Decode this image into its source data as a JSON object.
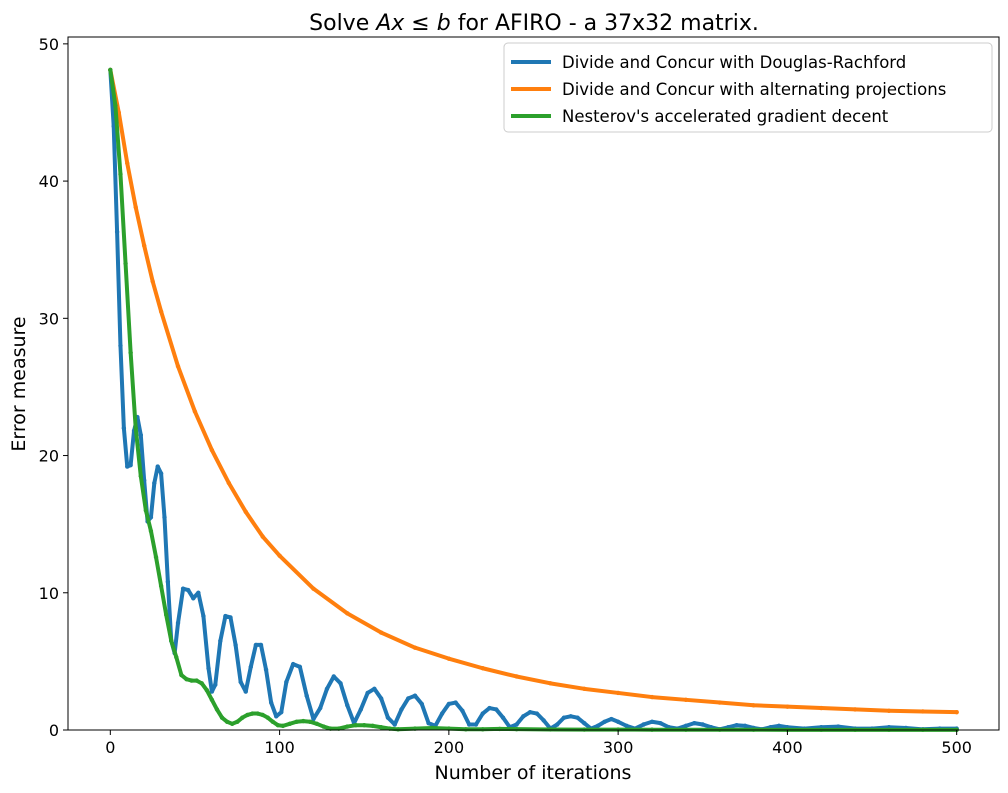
{
  "chart_data": {
    "type": "line",
    "title_parts": [
      "Solve ",
      "Ax",
      " ≤ ",
      "b",
      " for AFIRO - a 37x32 matrix."
    ],
    "xlabel": "Number of iterations",
    "ylabel": "Error measure",
    "xlim": [
      -25,
      525
    ],
    "ylim": [
      0,
      50.5
    ],
    "xticks": [
      0,
      100,
      200,
      300,
      400,
      500
    ],
    "yticks": [
      0,
      10,
      20,
      30,
      40,
      50
    ],
    "grid": false,
    "legend_position": "top-right",
    "series": [
      {
        "name": "Divide and Concur with Douglas-Rachford",
        "color": "#1f77b4",
        "x": [
          0,
          2,
          4,
          6,
          8,
          10,
          12,
          14,
          16,
          18,
          20,
          22,
          24,
          26,
          28,
          30,
          32,
          34,
          36,
          38,
          40,
          43,
          46,
          49,
          52,
          55,
          58,
          60,
          62,
          65,
          68,
          71,
          74,
          77,
          80,
          83,
          86,
          89,
          92,
          95,
          98,
          101,
          104,
          108,
          112,
          116,
          120,
          124,
          128,
          132,
          136,
          140,
          144,
          148,
          152,
          156,
          160,
          164,
          168,
          172,
          176,
          180,
          184,
          188,
          192,
          196,
          200,
          204,
          208,
          212,
          216,
          220,
          224,
          228,
          232,
          236,
          240,
          244,
          248,
          252,
          256,
          260,
          264,
          268,
          272,
          276,
          280,
          284,
          288,
          292,
          296,
          300,
          305,
          310,
          315,
          320,
          325,
          330,
          335,
          340,
          345,
          350,
          355,
          360,
          365,
          370,
          375,
          380,
          385,
          390,
          395,
          400,
          410,
          420,
          430,
          440,
          450,
          460,
          470,
          480,
          490,
          500
        ],
        "values": [
          48.1,
          44.0,
          36.3,
          28.0,
          22.0,
          19.2,
          19.3,
          21.8,
          22.8,
          21.5,
          18.2,
          15.2,
          15.5,
          18.0,
          19.2,
          18.7,
          15.5,
          10.8,
          6.5,
          5.6,
          7.8,
          10.3,
          10.2,
          9.6,
          10.0,
          8.3,
          4.5,
          2.8,
          3.3,
          6.5,
          8.3,
          8.2,
          6.2,
          3.5,
          2.8,
          4.6,
          6.2,
          6.2,
          4.4,
          2.0,
          1.0,
          1.3,
          3.5,
          4.8,
          4.6,
          2.5,
          0.8,
          1.6,
          3.0,
          3.9,
          3.4,
          1.8,
          0.5,
          1.5,
          2.7,
          3.0,
          2.3,
          0.9,
          0.4,
          1.5,
          2.3,
          2.5,
          1.9,
          0.5,
          0.3,
          1.2,
          1.9,
          2.0,
          1.4,
          0.4,
          0.4,
          1.2,
          1.6,
          1.5,
          0.9,
          0.2,
          0.4,
          1.0,
          1.3,
          1.2,
          0.7,
          0.1,
          0.4,
          0.9,
          1.0,
          0.9,
          0.5,
          0.1,
          0.3,
          0.6,
          0.8,
          0.6,
          0.3,
          0.1,
          0.4,
          0.6,
          0.5,
          0.2,
          0.1,
          0.3,
          0.5,
          0.4,
          0.2,
          0.05,
          0.2,
          0.35,
          0.3,
          0.15,
          0.05,
          0.2,
          0.3,
          0.2,
          0.1,
          0.2,
          0.25,
          0.1,
          0.1,
          0.2,
          0.15,
          0.05,
          0.1,
          0.1
        ]
      },
      {
        "name": "Divide and Concur with alternating projections",
        "color": "#ff7f0e",
        "x": [
          0,
          5,
          10,
          15,
          20,
          25,
          30,
          40,
          50,
          60,
          70,
          80,
          90,
          100,
          120,
          140,
          160,
          180,
          200,
          220,
          240,
          260,
          280,
          300,
          320,
          340,
          360,
          380,
          400,
          420,
          440,
          460,
          480,
          500
        ],
        "values": [
          48.1,
          45.0,
          41.3,
          38.1,
          35.3,
          32.7,
          30.5,
          26.5,
          23.2,
          20.4,
          18.0,
          15.9,
          14.1,
          12.7,
          10.3,
          8.5,
          7.1,
          6.0,
          5.2,
          4.5,
          3.9,
          3.4,
          3.0,
          2.7,
          2.4,
          2.2,
          2.0,
          1.8,
          1.7,
          1.6,
          1.5,
          1.4,
          1.35,
          1.3
        ]
      },
      {
        "name": "Nesterov's accelerated gradient decent",
        "color": "#2ca02c",
        "x": [
          0,
          3,
          6,
          9,
          12,
          15,
          18,
          21,
          24,
          27,
          30,
          33,
          36,
          39,
          42,
          45,
          48,
          51,
          54,
          57,
          60,
          63,
          66,
          69,
          72,
          75,
          78,
          81,
          84,
          87,
          90,
          93,
          96,
          99,
          102,
          106,
          110,
          114,
          118,
          122,
          126,
          130,
          135,
          140,
          145,
          150,
          155,
          160,
          165,
          170,
          180,
          190,
          200,
          210,
          220,
          230,
          240,
          260,
          280,
          300,
          320,
          340,
          360,
          380,
          400,
          420,
          440,
          460,
          480,
          500
        ],
        "values": [
          48.1,
          45.5,
          40.5,
          34.0,
          27.5,
          22.0,
          18.5,
          16.0,
          14.5,
          12.6,
          10.5,
          8.4,
          6.5,
          5.3,
          4.0,
          3.7,
          3.6,
          3.6,
          3.4,
          2.9,
          2.2,
          1.5,
          0.9,
          0.6,
          0.45,
          0.6,
          0.9,
          1.1,
          1.2,
          1.2,
          1.1,
          0.9,
          0.6,
          0.35,
          0.3,
          0.45,
          0.6,
          0.65,
          0.6,
          0.45,
          0.25,
          0.1,
          0.1,
          0.25,
          0.35,
          0.35,
          0.3,
          0.2,
          0.1,
          0.05,
          0.1,
          0.15,
          0.1,
          0.05,
          0.05,
          0.08,
          0.06,
          0.04,
          0.03,
          0.03,
          0.02,
          0.02,
          0.02,
          0.02,
          0.01,
          0.01,
          0.01,
          0.01,
          0.01,
          0.01
        ]
      }
    ]
  }
}
